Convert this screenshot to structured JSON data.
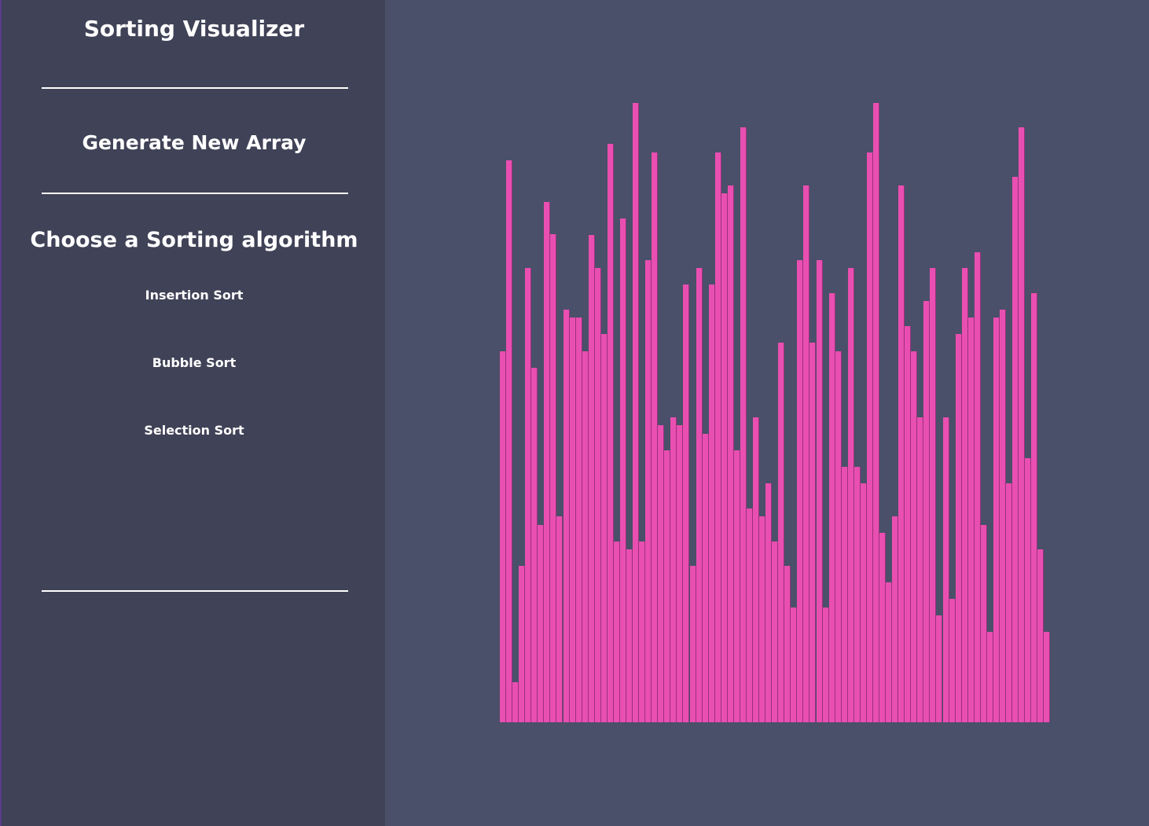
{
  "sidebar": {
    "title": "Sorting Visualizer",
    "generate_label": "Generate New Array",
    "algorithm_heading": "Choose a Sorting algorithm",
    "algorithms": [
      {
        "label": "Insertion Sort"
      },
      {
        "label": "Bubble Sort"
      },
      {
        "label": "Selection Sort"
      }
    ]
  },
  "colors": {
    "bar": "#e94fb0",
    "sidebar_bg": "#404257",
    "main_bg": "#4a5069"
  },
  "array": {
    "values": [
      472,
      715,
      51,
      199,
      578,
      451,
      251,
      662,
      621,
      262,
      525,
      515,
      515,
      472,
      620,
      578,
      494,
      736,
      230,
      641,
      220,
      788,
      230,
      588,
      725,
      378,
      346,
      388,
      378,
      557,
      199,
      578,
      367,
      557,
      725,
      673,
      683,
      346,
      757,
      272,
      388,
      262,
      304,
      230,
      483,
      199,
      146,
      588,
      683,
      483,
      588,
      146,
      546,
      472,
      325,
      578,
      325,
      304,
      725,
      788,
      241,
      178,
      262,
      683,
      504,
      472,
      388,
      536,
      578,
      136,
      388,
      157,
      494,
      578,
      515,
      598,
      251,
      115,
      515,
      525,
      304,
      694,
      757,
      336,
      546,
      220,
      115
    ]
  }
}
